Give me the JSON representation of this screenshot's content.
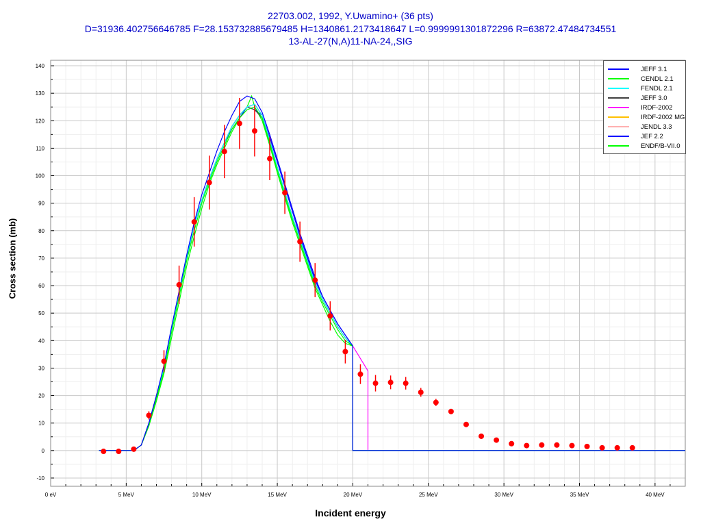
{
  "header": {
    "line1": "22703.002, 1992, Y.Uwamino+ (36 pts)",
    "line2": "D=31936.402756646785 F=28.153732885679485 H=1340861.2173418647 L=0.9999991301872296 R=63872.47484734551",
    "line3": "13-AL-27(N,A)11-NA-24,,SIG"
  },
  "chart_data": {
    "type": "line",
    "xlabel": "Incident energy",
    "ylabel": "Cross section (mb)",
    "xlim": [
      0,
      42
    ],
    "ylim": [
      -13,
      142
    ],
    "grid": true,
    "legend_position": "top-right",
    "x_ticks": [
      {
        "v": 0,
        "label": "0 eV"
      },
      {
        "v": 5,
        "label": "5 MeV"
      },
      {
        "v": 10,
        "label": "10 MeV"
      },
      {
        "v": 15,
        "label": "15 MeV"
      },
      {
        "v": 20,
        "label": "20 MeV"
      },
      {
        "v": 25,
        "label": "25 MeV"
      },
      {
        "v": 30,
        "label": "30 MeV"
      },
      {
        "v": 35,
        "label": "35 MeV"
      },
      {
        "v": 40,
        "label": "40 MeV"
      }
    ],
    "y_ticks": [
      -10,
      0,
      10,
      20,
      30,
      40,
      50,
      60,
      70,
      80,
      90,
      100,
      110,
      120,
      130,
      140
    ],
    "experimental": {
      "color": "#ff0000",
      "x": [
        3.5,
        4.5,
        5.5,
        6.5,
        7.5,
        8.5,
        9.5,
        10.5,
        11.5,
        12.5,
        13.5,
        14.5,
        15.5,
        16.5,
        17.5,
        18.5,
        19.5,
        20.5,
        21.5,
        22.5,
        23.5,
        24.5,
        25.5,
        26.5,
        27.5,
        28.5,
        29.5,
        30.5,
        31.5,
        32.5,
        33.5,
        34.5,
        35.5,
        36.5,
        37.5,
        38.5
      ],
      "y": [
        -0.3,
        -0.3,
        0.5,
        12.8,
        32.5,
        60.3,
        83.2,
        97.5,
        108.8,
        119,
        116.3,
        106.2,
        93.8,
        76,
        62,
        49,
        36,
        27.8,
        24.5,
        24.8,
        24.5,
        21.2,
        17.5,
        14.2,
        9.5,
        5.2,
        3.8,
        2.5,
        1.8,
        2,
        2,
        1.8,
        1.5,
        1,
        1,
        1
      ],
      "err": [
        0.3,
        0.3,
        0.5,
        1.5,
        4,
        7,
        9,
        9.8,
        9.7,
        9.3,
        9.3,
        7.8,
        7.7,
        7.3,
        6.2,
        5.3,
        4.3,
        3.6,
        3,
        2.5,
        2.3,
        1.6,
        1.3,
        1,
        0.6,
        0.5,
        0.4,
        0.4,
        0.3,
        0.3,
        0.3,
        0.3,
        0.3,
        0.3,
        0.3,
        0.3
      ]
    },
    "series": [
      {
        "name": "JEFF 3.1",
        "color": "#0000ff",
        "x": [
          3.2,
          5.5,
          6,
          6.5,
          7,
          7.5,
          8,
          8.5,
          9,
          9.5,
          10,
          10.5,
          11,
          11.5,
          12,
          12.5,
          13,
          13.5,
          14,
          14.5,
          15,
          15.5,
          16,
          16.5,
          17,
          17.5,
          18,
          18.5,
          19,
          19.5,
          20,
          20,
          42
        ],
        "y": [
          0,
          0,
          2,
          10,
          20,
          31,
          45,
          58,
          71,
          83,
          93,
          101,
          109,
          116,
          122,
          127,
          129,
          128,
          123,
          115,
          106,
          97,
          88,
          79,
          71,
          63,
          56,
          51,
          46,
          42,
          38,
          0,
          0
        ]
      },
      {
        "name": "CENDL 2.1",
        "color": "#00ff00",
        "x": [
          3.2,
          5.5,
          6,
          6.5,
          7,
          7.5,
          8,
          8.5,
          9,
          9.5,
          10,
          10.5,
          11,
          11.5,
          12,
          12.5,
          13,
          13.5,
          14,
          14.5,
          15,
          15.5,
          16,
          16.5,
          17,
          17.5,
          18,
          18.5,
          19,
          19.5,
          20,
          20,
          42
        ],
        "y": [
          0,
          0,
          2,
          9,
          19,
          29,
          43,
          56,
          69,
          80,
          90,
          98,
          105,
          111,
          117,
          121,
          124,
          125,
          121,
          112,
          102,
          93,
          84,
          76,
          68,
          60,
          54,
          49,
          44,
          40,
          38,
          0,
          0
        ]
      },
      {
        "name": "FENDL 2.1",
        "color": "#00ffff",
        "x": [
          3.2,
          5.5,
          6,
          6.5,
          7,
          7.5,
          8,
          8.5,
          9,
          9.5,
          10,
          10.5,
          11,
          11.5,
          12,
          12.5,
          13,
          13.5,
          14,
          14.5,
          15,
          15.5,
          16,
          16.5,
          17,
          17.5,
          18,
          18.5,
          19,
          19.5,
          20,
          20,
          42
        ],
        "y": [
          0,
          0,
          2,
          10,
          20,
          30,
          44,
          57,
          70,
          82,
          91,
          99,
          106,
          112,
          118,
          122,
          125,
          126,
          122,
          113,
          103,
          94,
          85,
          77,
          69,
          61,
          55,
          50,
          45,
          41,
          38,
          0,
          0
        ]
      },
      {
        "name": "JEFF 3.0",
        "color": "#404040",
        "x": [
          3.2,
          5.5,
          6,
          6.5,
          7,
          7.5,
          8,
          8.5,
          9,
          9.5,
          10,
          10.5,
          11,
          11.5,
          12,
          12.5,
          13,
          13.5,
          14,
          14.5,
          15,
          15.5,
          16,
          16.5,
          17,
          17.5,
          18,
          18.5,
          19,
          19.5,
          20,
          20,
          42
        ],
        "y": [
          0,
          0,
          2,
          10,
          20,
          30,
          44,
          57,
          70,
          82,
          91,
          99,
          106,
          112,
          118,
          122,
          125,
          124,
          121,
          112,
          103,
          94,
          85,
          77,
          69,
          61,
          55,
          50,
          45,
          41,
          38,
          0,
          0
        ]
      },
      {
        "name": "IRDF-2002",
        "color": "#ff00ff",
        "x": [
          3.2,
          5.5,
          6,
          6.5,
          7,
          7.5,
          8,
          8.5,
          9,
          9.5,
          10,
          10.5,
          11,
          11.5,
          12,
          12.5,
          13,
          13.5,
          14,
          14.5,
          15,
          15.5,
          16,
          16.5,
          17,
          17.5,
          18,
          18.5,
          19,
          19.5,
          20,
          21,
          21,
          42
        ],
        "y": [
          0,
          0,
          2,
          10,
          20,
          30,
          44,
          57,
          70,
          82,
          91,
          99,
          106,
          112,
          118,
          122,
          125,
          126,
          122,
          113,
          103,
          94,
          85,
          77,
          69,
          61,
          55,
          50,
          45,
          41,
          38,
          29,
          0,
          0
        ]
      },
      {
        "name": "IRDF-2002 MG",
        "color": "#ffc000",
        "x": [
          3.2,
          5.5,
          6,
          6.5,
          7,
          7.5,
          8,
          8.5,
          9,
          9.5,
          10,
          10.5,
          11,
          11.5,
          12,
          12.5,
          13,
          13.5,
          14,
          14.5,
          15,
          15.5,
          16,
          16.5,
          17,
          17.5,
          18,
          18.5,
          19,
          19.5,
          20,
          20,
          42
        ],
        "y": [
          0,
          0,
          2,
          10,
          20,
          30,
          44,
          57,
          70,
          82,
          91,
          99,
          106,
          112,
          118,
          122,
          125,
          126,
          122,
          113,
          103,
          94,
          85,
          77,
          69,
          61,
          55,
          50,
          45,
          41,
          38,
          0,
          0
        ]
      },
      {
        "name": "JENDL 3.3",
        "color": "#ffb0b0",
        "x": [
          3.2,
          5.5,
          6,
          6.5,
          7,
          7.5,
          8,
          8.5,
          9,
          9.5,
          10,
          10.5,
          11,
          11.5,
          12,
          12.5,
          13,
          13.5,
          14,
          14.5,
          15,
          15.5,
          16,
          16.5,
          17,
          17.5,
          18,
          18.5,
          19,
          19.5,
          20,
          20,
          42
        ],
        "y": [
          0,
          0,
          2,
          10,
          20,
          30,
          44,
          57,
          70,
          82,
          91,
          99,
          106,
          112,
          118,
          122,
          125,
          126,
          122,
          113,
          103,
          94,
          85,
          77,
          69,
          61,
          55,
          50,
          45,
          41,
          38,
          0,
          0
        ]
      },
      {
        "name": "JEF 2.2",
        "color": "#0000ff",
        "x": [
          3.2,
          5.5,
          6,
          6.5,
          7,
          7.5,
          8,
          8.5,
          9,
          9.5,
          10,
          10.5,
          11,
          11.5,
          12,
          12.5,
          13,
          13.5,
          14,
          14.5,
          15,
          15.5,
          16,
          16.5,
          17,
          17.5,
          18,
          18.5,
          19,
          19.5,
          20,
          20,
          42
        ],
        "y": [
          0,
          0,
          2,
          10,
          20,
          30,
          44,
          57,
          70,
          82,
          91,
          99,
          106,
          112,
          117,
          121,
          125,
          124,
          122,
          114,
          105,
          96,
          87,
          78,
          70,
          62,
          56,
          51,
          46,
          42,
          38,
          0,
          0
        ]
      },
      {
        "name": "ENDF/B-VII.0",
        "color": "#00ff00",
        "x": [
          3.2,
          5.5,
          6,
          6.5,
          7,
          7.5,
          8,
          8.5,
          9,
          9.5,
          10,
          10.5,
          11,
          11.5,
          12,
          12.5,
          13,
          13.3,
          13.5,
          14,
          14.5,
          15,
          15.5,
          16,
          16.5,
          17,
          17.5,
          18,
          18.5,
          19,
          19.5,
          20,
          20,
          42
        ],
        "y": [
          0,
          0,
          2,
          9,
          18,
          28,
          41,
          54,
          67,
          78,
          88,
          97,
          104,
          110,
          116,
          121,
          125,
          129,
          125,
          120,
          111,
          101,
          92,
          83,
          75,
          67,
          59,
          53,
          47,
          42,
          39,
          38,
          0,
          0
        ]
      }
    ]
  }
}
